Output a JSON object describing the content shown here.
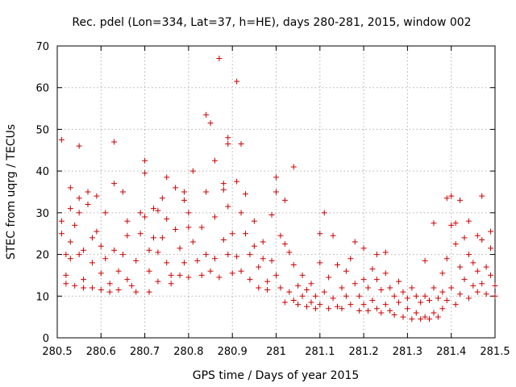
{
  "chart_data": {
    "type": "scatter",
    "title": "Rec. pdel (Lon=334, Lat=37, h=HE), days 280-281, 2015, window 002",
    "xlabel": "GPS time / Days of year 2015",
    "ylabel": "STEC from uqrg / TECUs",
    "xlim": [
      280.5,
      281.5
    ],
    "ylim": [
      0,
      70
    ],
    "xticks": [
      280.5,
      280.6,
      280.7,
      280.8,
      280.9,
      281,
      281.1,
      281.2,
      281.3,
      281.4,
      281.5
    ],
    "xtick_labels": [
      "280.5",
      "280.6",
      "280.7",
      "280.8",
      "280.9",
      "281",
      "281.1",
      "281.2",
      "281.3",
      "281.4",
      "281.5"
    ],
    "yticks": [
      0,
      10,
      20,
      30,
      40,
      50,
      60,
      70
    ],
    "ytick_labels": [
      "0",
      "10",
      "20",
      "30",
      "40",
      "50",
      "60",
      "70"
    ],
    "grid": true,
    "marker": "+",
    "color": "#cc0000",
    "series": [
      {
        "name": "STEC",
        "points": [
          [
            280.51,
            47.5
          ],
          [
            280.51,
            28
          ],
          [
            280.51,
            25
          ],
          [
            280.52,
            20
          ],
          [
            280.52,
            13
          ],
          [
            280.52,
            15
          ],
          [
            280.53,
            36
          ],
          [
            280.53,
            31
          ],
          [
            280.53,
            23
          ],
          [
            280.53,
            19
          ],
          [
            280.54,
            27
          ],
          [
            280.54,
            12.5
          ],
          [
            280.55,
            46
          ],
          [
            280.55,
            33.5
          ],
          [
            280.55,
            30
          ],
          [
            280.55,
            20
          ],
          [
            280.56,
            21
          ],
          [
            280.56,
            14
          ],
          [
            280.56,
            12
          ],
          [
            280.57,
            35
          ],
          [
            280.57,
            32
          ],
          [
            280.58,
            24
          ],
          [
            280.58,
            18
          ],
          [
            280.58,
            12
          ],
          [
            280.59,
            34
          ],
          [
            280.59,
            25.5
          ],
          [
            280.6,
            22
          ],
          [
            280.6,
            15.5
          ],
          [
            280.6,
            11.5
          ],
          [
            280.61,
            30
          ],
          [
            280.61,
            19
          ],
          [
            280.62,
            13
          ],
          [
            280.62,
            11
          ],
          [
            280.63,
            47
          ],
          [
            280.63,
            37
          ],
          [
            280.63,
            21
          ],
          [
            280.64,
            16
          ],
          [
            280.64,
            11.5
          ],
          [
            280.65,
            35
          ],
          [
            280.65,
            20
          ],
          [
            280.66,
            28
          ],
          [
            280.66,
            24.5
          ],
          [
            280.66,
            14
          ],
          [
            280.67,
            12.5
          ],
          [
            280.68,
            18.5
          ],
          [
            280.68,
            11
          ],
          [
            280.69,
            30
          ],
          [
            280.69,
            25
          ],
          [
            280.7,
            42.5
          ],
          [
            280.7,
            39.5
          ],
          [
            280.7,
            29
          ],
          [
            280.71,
            21
          ],
          [
            280.71,
            16
          ],
          [
            280.71,
            11
          ],
          [
            280.72,
            31
          ],
          [
            280.72,
            24
          ],
          [
            280.73,
            30.5
          ],
          [
            280.73,
            20.5
          ],
          [
            280.73,
            13.5
          ],
          [
            280.74,
            33.5
          ],
          [
            280.74,
            24
          ],
          [
            280.75,
            38.5
          ],
          [
            280.75,
            28.5
          ],
          [
            280.75,
            18
          ],
          [
            280.76,
            15
          ],
          [
            280.76,
            13
          ],
          [
            280.77,
            36
          ],
          [
            280.77,
            26
          ],
          [
            280.78,
            21.5
          ],
          [
            280.78,
            15
          ],
          [
            280.79,
            35
          ],
          [
            280.79,
            33
          ],
          [
            280.79,
            18
          ],
          [
            280.8,
            30
          ],
          [
            280.8,
            26.5
          ],
          [
            280.8,
            14.5
          ],
          [
            280.81,
            40
          ],
          [
            280.81,
            23
          ],
          [
            280.82,
            18.5
          ],
          [
            280.83,
            26.5
          ],
          [
            280.83,
            15
          ],
          [
            280.84,
            53.5
          ],
          [
            280.84,
            35
          ],
          [
            280.84,
            20
          ],
          [
            280.85,
            16
          ],
          [
            280.85,
            51.5
          ],
          [
            280.86,
            42.5
          ],
          [
            280.86,
            29
          ],
          [
            280.86,
            19
          ],
          [
            280.87,
            14.5
          ],
          [
            280.87,
            67
          ],
          [
            280.88,
            37
          ],
          [
            280.88,
            35.5
          ],
          [
            280.88,
            23.5
          ],
          [
            280.89,
            48
          ],
          [
            280.89,
            46.5
          ],
          [
            280.89,
            31.5
          ],
          [
            280.89,
            20
          ],
          [
            280.9,
            25
          ],
          [
            280.9,
            15.5
          ],
          [
            280.91,
            61.5
          ],
          [
            280.91,
            37.5
          ],
          [
            280.91,
            19.5
          ],
          [
            280.92,
            46.5
          ],
          [
            280.92,
            30
          ],
          [
            280.92,
            16
          ],
          [
            280.93,
            34.5
          ],
          [
            280.93,
            25
          ],
          [
            280.94,
            20
          ],
          [
            280.94,
            14
          ],
          [
            280.95,
            28
          ],
          [
            280.95,
            22
          ],
          [
            280.96,
            17
          ],
          [
            280.96,
            12
          ],
          [
            280.97,
            23
          ],
          [
            280.97,
            19
          ],
          [
            280.98,
            13.5
          ],
          [
            280.98,
            11.5
          ],
          [
            280.99,
            29.5
          ],
          [
            280.99,
            18.5
          ],
          [
            281.0,
            38.5
          ],
          [
            281.0,
            35
          ],
          [
            281.0,
            15
          ],
          [
            281.01,
            24.5
          ],
          [
            281.01,
            12
          ],
          [
            281.02,
            33
          ],
          [
            281.02,
            22.5
          ],
          [
            281.02,
            8.5
          ],
          [
            281.03,
            20.5
          ],
          [
            281.03,
            11
          ],
          [
            281.04,
            41
          ],
          [
            281.04,
            17.5
          ],
          [
            281.04,
            9
          ],
          [
            281.05,
            12.5
          ],
          [
            281.05,
            8
          ],
          [
            281.06,
            15
          ],
          [
            281.06,
            10
          ],
          [
            281.07,
            11.5
          ],
          [
            281.07,
            7.5
          ],
          [
            281.08,
            13
          ],
          [
            281.08,
            8.5
          ],
          [
            281.09,
            10
          ],
          [
            281.09,
            7
          ],
          [
            281.1,
            25
          ],
          [
            281.1,
            18
          ],
          [
            281.1,
            8
          ],
          [
            281.11,
            30
          ],
          [
            281.11,
            11
          ],
          [
            281.12,
            14.5
          ],
          [
            281.12,
            7
          ],
          [
            281.13,
            24.5
          ],
          [
            281.13,
            9.5
          ],
          [
            281.14,
            17.5
          ],
          [
            281.14,
            7.5
          ],
          [
            281.15,
            12
          ],
          [
            281.15,
            7
          ],
          [
            281.16,
            16
          ],
          [
            281.16,
            10
          ],
          [
            281.17,
            19
          ],
          [
            281.17,
            8
          ],
          [
            281.18,
            23
          ],
          [
            281.18,
            13
          ],
          [
            281.19,
            10
          ],
          [
            281.19,
            6.5
          ],
          [
            281.2,
            21.5
          ],
          [
            281.2,
            14
          ],
          [
            281.2,
            8
          ],
          [
            281.21,
            12
          ],
          [
            281.21,
            6.5
          ],
          [
            281.22,
            16.5
          ],
          [
            281.22,
            9
          ],
          [
            281.23,
            20
          ],
          [
            281.23,
            14
          ],
          [
            281.23,
            7
          ],
          [
            281.24,
            11.5
          ],
          [
            281.24,
            6
          ],
          [
            281.25,
            20.5
          ],
          [
            281.25,
            15.5
          ],
          [
            281.25,
            8
          ],
          [
            281.26,
            12
          ],
          [
            281.26,
            6.5
          ],
          [
            281.27,
            10
          ],
          [
            281.27,
            5.5
          ],
          [
            281.28,
            13.5
          ],
          [
            281.28,
            8.5
          ],
          [
            281.29,
            11
          ],
          [
            281.29,
            5
          ],
          [
            281.3,
            9.5
          ],
          [
            281.3,
            7
          ],
          [
            281.31,
            12
          ],
          [
            281.31,
            4.5
          ],
          [
            281.32,
            10
          ],
          [
            281.32,
            6
          ],
          [
            281.33,
            8.5
          ],
          [
            281.33,
            4.5
          ],
          [
            281.34,
            18.5
          ],
          [
            281.34,
            10
          ],
          [
            281.34,
            5
          ],
          [
            281.35,
            9
          ],
          [
            281.35,
            4.5
          ],
          [
            281.36,
            27.5
          ],
          [
            281.36,
            12
          ],
          [
            281.36,
            6
          ],
          [
            281.37,
            9.5
          ],
          [
            281.37,
            5
          ],
          [
            281.38,
            15.5
          ],
          [
            281.38,
            11
          ],
          [
            281.38,
            7
          ],
          [
            281.39,
            33.5
          ],
          [
            281.39,
            19
          ],
          [
            281.39,
            9
          ],
          [
            281.4,
            34
          ],
          [
            281.4,
            27
          ],
          [
            281.4,
            12
          ],
          [
            281.41,
            27.5
          ],
          [
            281.41,
            22.5
          ],
          [
            281.41,
            8
          ],
          [
            281.42,
            33
          ],
          [
            281.42,
            17
          ],
          [
            281.42,
            10.5
          ],
          [
            281.43,
            24
          ],
          [
            281.43,
            14
          ],
          [
            281.44,
            28
          ],
          [
            281.44,
            20
          ],
          [
            281.44,
            9.5
          ],
          [
            281.45,
            18
          ],
          [
            281.45,
            12.5
          ],
          [
            281.46,
            24.5
          ],
          [
            281.46,
            16
          ],
          [
            281.46,
            11
          ],
          [
            281.47,
            34
          ],
          [
            281.47,
            23.5
          ],
          [
            281.47,
            13
          ],
          [
            281.48,
            17
          ],
          [
            281.48,
            10.5
          ],
          [
            281.49,
            25.5
          ],
          [
            281.49,
            21.5
          ],
          [
            281.49,
            15
          ],
          [
            281.5,
            12.5
          ],
          [
            281.5,
            10
          ]
        ]
      }
    ]
  }
}
